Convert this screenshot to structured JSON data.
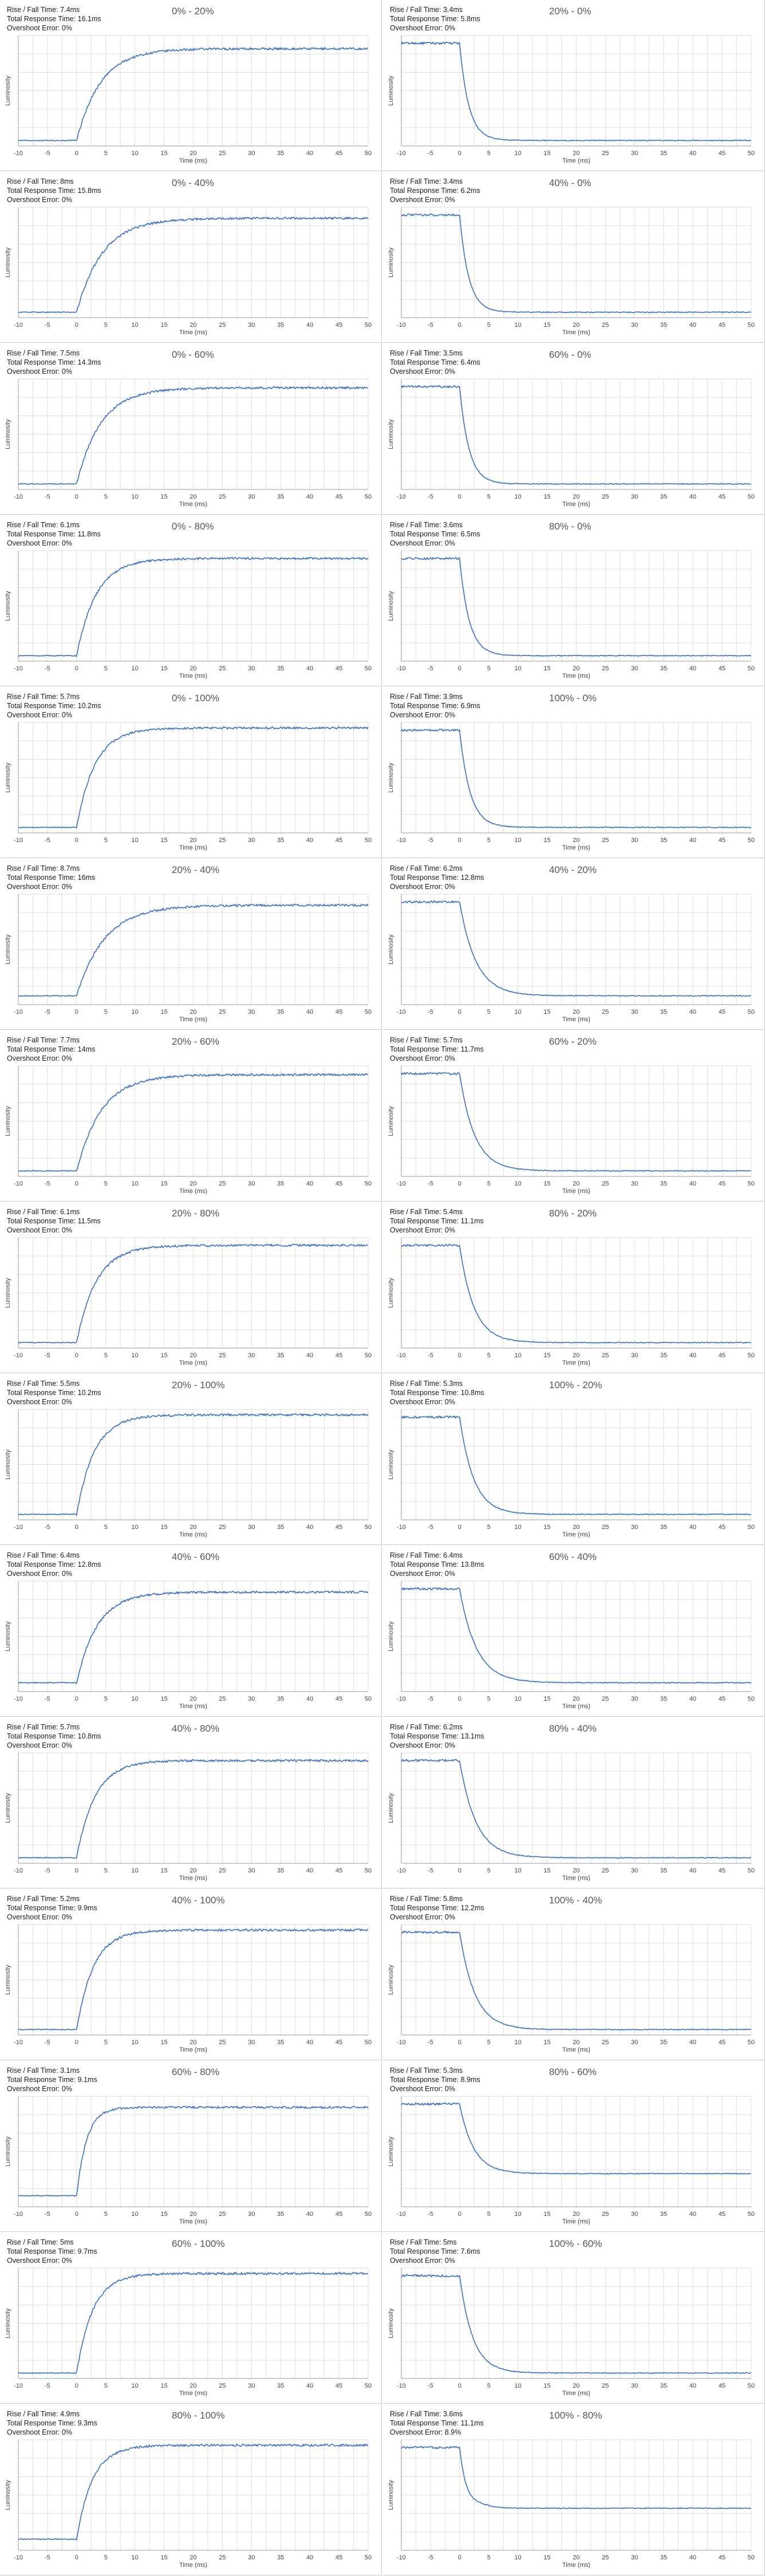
{
  "labels": {
    "rise_fall_prefix": "Rise / Fall Time: ",
    "total_prefix": "Total Response Time: ",
    "overshoot_prefix": "Overshoot Error: ",
    "x_axis_label": "Time (ms)",
    "y_axis_label": "Luminosity",
    "x_ticks": [
      "-10",
      "-5",
      "0",
      "5",
      "10",
      "15",
      "20",
      "25",
      "30",
      "35",
      "40",
      "45",
      "50"
    ]
  },
  "colors": {
    "trace": "#3a6fc4",
    "gridline": "#dddddd",
    "panel_border": "#c9c9c9"
  },
  "chart_data": [
    {
      "type": "line",
      "title": "0% - 20%",
      "rise_fall": "7.4ms",
      "total": "16.1ms",
      "overshoot": "0%",
      "direction": "rise",
      "start_level": 0.05,
      "end_level": 0.88,
      "xlim": [
        -10,
        50
      ],
      "xlabel": "Time (ms)",
      "ylabel": "Luminosity"
    },
    {
      "type": "line",
      "title": "20% - 0%",
      "rise_fall": "3.4ms",
      "total": "5.8ms",
      "overshoot": "0%",
      "direction": "fall",
      "start_level": 0.93,
      "end_level": 0.05,
      "xlim": [
        -10,
        50
      ],
      "xlabel": "Time (ms)",
      "ylabel": "Luminosity"
    },
    {
      "type": "line",
      "title": "0% - 40%",
      "rise_fall": "8ms",
      "total": "15.8ms",
      "overshoot": "0%",
      "direction": "rise",
      "start_level": 0.05,
      "end_level": 0.9,
      "xlim": [
        -10,
        50
      ],
      "xlabel": "Time (ms)",
      "ylabel": "Luminosity"
    },
    {
      "type": "line",
      "title": "40% - 0%",
      "rise_fall": "3.4ms",
      "total": "6.2ms",
      "overshoot": "0%",
      "direction": "fall",
      "start_level": 0.93,
      "end_level": 0.05,
      "xlim": [
        -10,
        50
      ],
      "xlabel": "Time (ms)",
      "ylabel": "Luminosity"
    },
    {
      "type": "line",
      "title": "0% - 60%",
      "rise_fall": "7.5ms",
      "total": "14.3ms",
      "overshoot": "0%",
      "direction": "rise",
      "start_level": 0.05,
      "end_level": 0.92,
      "xlim": [
        -10,
        50
      ],
      "xlabel": "Time (ms)",
      "ylabel": "Luminosity"
    },
    {
      "type": "line",
      "title": "60% - 0%",
      "rise_fall": "3.5ms",
      "total": "6.4ms",
      "overshoot": "0%",
      "direction": "fall",
      "start_level": 0.93,
      "end_level": 0.05,
      "xlim": [
        -10,
        50
      ],
      "xlabel": "Time (ms)",
      "ylabel": "Luminosity"
    },
    {
      "type": "line",
      "title": "0% - 80%",
      "rise_fall": "6.1ms",
      "total": "11.8ms",
      "overshoot": "0%",
      "direction": "rise",
      "start_level": 0.05,
      "end_level": 0.93,
      "xlim": [
        -10,
        50
      ],
      "xlabel": "Time (ms)",
      "ylabel": "Luminosity"
    },
    {
      "type": "line",
      "title": "80% - 0%",
      "rise_fall": "3.6ms",
      "total": "6.5ms",
      "overshoot": "0%",
      "direction": "fall",
      "start_level": 0.93,
      "end_level": 0.05,
      "xlim": [
        -10,
        50
      ],
      "xlabel": "Time (ms)",
      "ylabel": "Luminosity"
    },
    {
      "type": "line",
      "title": "0% - 100%",
      "rise_fall": "5.7ms",
      "total": "10.2ms",
      "overshoot": "0%",
      "direction": "rise",
      "start_level": 0.05,
      "end_level": 0.95,
      "xlim": [
        -10,
        50
      ],
      "xlabel": "Time (ms)",
      "ylabel": "Luminosity"
    },
    {
      "type": "line",
      "title": "100% - 0%",
      "rise_fall": "3.9ms",
      "total": "6.9ms",
      "overshoot": "0%",
      "direction": "fall",
      "start_level": 0.93,
      "end_level": 0.05,
      "xlim": [
        -10,
        50
      ],
      "xlabel": "Time (ms)",
      "ylabel": "Luminosity"
    },
    {
      "type": "line",
      "title": "20% - 40%",
      "rise_fall": "8.7ms",
      "total": "16ms",
      "overshoot": "0%",
      "direction": "rise",
      "start_level": 0.08,
      "end_level": 0.9,
      "xlim": [
        -10,
        50
      ],
      "xlabel": "Time (ms)",
      "ylabel": "Luminosity"
    },
    {
      "type": "line",
      "title": "40% - 20%",
      "rise_fall": "6.2ms",
      "total": "12.8ms",
      "overshoot": "0%",
      "direction": "fall",
      "start_level": 0.93,
      "end_level": 0.08,
      "xlim": [
        -10,
        50
      ],
      "xlabel": "Time (ms)",
      "ylabel": "Luminosity"
    },
    {
      "type": "line",
      "title": "20% - 60%",
      "rise_fall": "7.7ms",
      "total": "14ms",
      "overshoot": "0%",
      "direction": "rise",
      "start_level": 0.05,
      "end_level": 0.92,
      "xlim": [
        -10,
        50
      ],
      "xlabel": "Time (ms)",
      "ylabel": "Luminosity"
    },
    {
      "type": "line",
      "title": "60% - 20%",
      "rise_fall": "5.7ms",
      "total": "11.7ms",
      "overshoot": "0%",
      "direction": "fall",
      "start_level": 0.93,
      "end_level": 0.05,
      "xlim": [
        -10,
        50
      ],
      "xlabel": "Time (ms)",
      "ylabel": "Luminosity"
    },
    {
      "type": "line",
      "title": "20% - 80%",
      "rise_fall": "6.1ms",
      "total": "11.5ms",
      "overshoot": "0%",
      "direction": "rise",
      "start_level": 0.05,
      "end_level": 0.93,
      "xlim": [
        -10,
        50
      ],
      "xlabel": "Time (ms)",
      "ylabel": "Luminosity"
    },
    {
      "type": "line",
      "title": "80% - 20%",
      "rise_fall": "5.4ms",
      "total": "11.1ms",
      "overshoot": "0%",
      "direction": "fall",
      "start_level": 0.93,
      "end_level": 0.05,
      "xlim": [
        -10,
        50
      ],
      "xlabel": "Time (ms)",
      "ylabel": "Luminosity"
    },
    {
      "type": "line",
      "title": "20% - 100%",
      "rise_fall": "5.5ms",
      "total": "10.2ms",
      "overshoot": "0%",
      "direction": "rise",
      "start_level": 0.05,
      "end_level": 0.95,
      "xlim": [
        -10,
        50
      ],
      "xlabel": "Time (ms)",
      "ylabel": "Luminosity"
    },
    {
      "type": "line",
      "title": "100% - 20%",
      "rise_fall": "5.3ms",
      "total": "10.8ms",
      "overshoot": "0%",
      "direction": "fall",
      "start_level": 0.93,
      "end_level": 0.05,
      "xlim": [
        -10,
        50
      ],
      "xlabel": "Time (ms)",
      "ylabel": "Luminosity"
    },
    {
      "type": "line",
      "title": "40% - 60%",
      "rise_fall": "6.4ms",
      "total": "12.8ms",
      "overshoot": "0%",
      "direction": "rise",
      "start_level": 0.08,
      "end_level": 0.9,
      "xlim": [
        -10,
        50
      ],
      "xlabel": "Time (ms)",
      "ylabel": "Luminosity"
    },
    {
      "type": "line",
      "title": "60% - 40%",
      "rise_fall": "6.4ms",
      "total": "13.8ms",
      "overshoot": "0%",
      "direction": "fall",
      "start_level": 0.93,
      "end_level": 0.08,
      "xlim": [
        -10,
        50
      ],
      "xlabel": "Time (ms)",
      "ylabel": "Luminosity"
    },
    {
      "type": "line",
      "title": "40% - 80%",
      "rise_fall": "5.7ms",
      "total": "10.8ms",
      "overshoot": "0%",
      "direction": "rise",
      "start_level": 0.05,
      "end_level": 0.93,
      "xlim": [
        -10,
        50
      ],
      "xlabel": "Time (ms)",
      "ylabel": "Luminosity"
    },
    {
      "type": "line",
      "title": "80% - 40%",
      "rise_fall": "6.2ms",
      "total": "13.1ms",
      "overshoot": "0%",
      "direction": "fall",
      "start_level": 0.93,
      "end_level": 0.05,
      "xlim": [
        -10,
        50
      ],
      "xlabel": "Time (ms)",
      "ylabel": "Luminosity"
    },
    {
      "type": "line",
      "title": "40% - 100%",
      "rise_fall": "5.2ms",
      "total": "9.9ms",
      "overshoot": "0%",
      "direction": "rise",
      "start_level": 0.05,
      "end_level": 0.95,
      "xlim": [
        -10,
        50
      ],
      "xlabel": "Time (ms)",
      "ylabel": "Luminosity"
    },
    {
      "type": "line",
      "title": "100% - 40%",
      "rise_fall": "5.8ms",
      "total": "12.2ms",
      "overshoot": "0%",
      "direction": "fall",
      "start_level": 0.93,
      "end_level": 0.05,
      "xlim": [
        -10,
        50
      ],
      "xlabel": "Time (ms)",
      "ylabel": "Luminosity"
    },
    {
      "type": "line",
      "title": "60% - 80%",
      "rise_fall": "3.1ms",
      "total": "9.1ms",
      "overshoot": "0%",
      "direction": "rise",
      "start_level": 0.1,
      "end_level": 0.9,
      "xlim": [
        -10,
        50
      ],
      "xlabel": "Time (ms)",
      "ylabel": "Luminosity"
    },
    {
      "type": "line",
      "title": "80% - 60%",
      "rise_fall": "5.3ms",
      "total": "8.9ms",
      "overshoot": "0%",
      "direction": "fall",
      "start_level": 0.93,
      "end_level": 0.3,
      "xlim": [
        -10,
        50
      ],
      "xlabel": "Time (ms)",
      "ylabel": "Luminosity"
    },
    {
      "type": "line",
      "title": "60% - 100%",
      "rise_fall": "5ms",
      "total": "9.7ms",
      "overshoot": "0%",
      "direction": "rise",
      "start_level": 0.05,
      "end_level": 0.95,
      "xlim": [
        -10,
        50
      ],
      "xlabel": "Time (ms)",
      "ylabel": "Luminosity"
    },
    {
      "type": "line",
      "title": "100% - 60%",
      "rise_fall": "5ms",
      "total": "7.6ms",
      "overshoot": "0%",
      "direction": "fall",
      "start_level": 0.93,
      "end_level": 0.05,
      "xlim": [
        -10,
        50
      ],
      "xlabel": "Time (ms)",
      "ylabel": "Luminosity"
    },
    {
      "type": "line",
      "title": "80% - 100%",
      "rise_fall": "4.9ms",
      "total": "9.3ms",
      "overshoot": "0%",
      "direction": "rise",
      "start_level": 0.1,
      "end_level": 0.95,
      "xlim": [
        -10,
        50
      ],
      "xlabel": "Time (ms)",
      "ylabel": "Luminosity"
    },
    {
      "type": "line",
      "title": "100% - 80%",
      "rise_fall": "3.6ms",
      "total": "11.1ms",
      "overshoot": "8.9%",
      "direction": "fall",
      "start_level": 0.93,
      "end_level": 0.38,
      "xlim": [
        -10,
        50
      ],
      "xlabel": "Time (ms)",
      "ylabel": "Luminosity"
    }
  ]
}
